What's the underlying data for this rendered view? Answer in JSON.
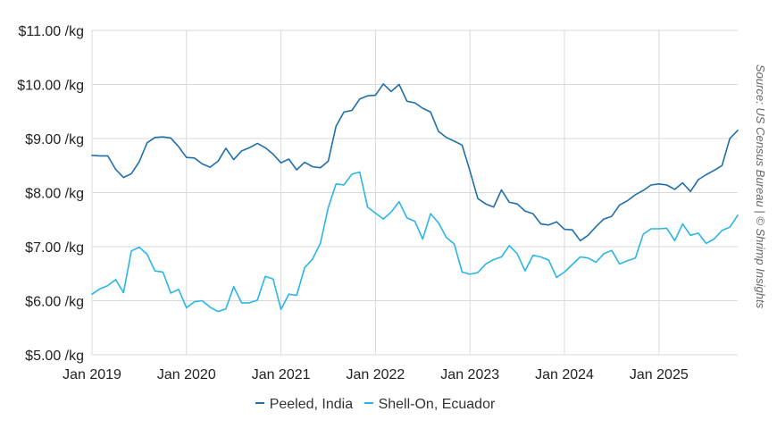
{
  "source_note": "Source: US Census Bureau | © Shrimp Insights",
  "chart_data": {
    "type": "line",
    "title": "",
    "xlabel": "",
    "ylabel": "",
    "ylim": [
      5,
      11
    ],
    "yticks": [
      {
        "value": 11,
        "label": "$11.00 /kg"
      },
      {
        "value": 10,
        "label": "$10.00 /kg"
      },
      {
        "value": 9,
        "label": "$9.00 /kg"
      },
      {
        "value": 8,
        "label": "$8.00 /kg"
      },
      {
        "value": 7,
        "label": "$7.00 /kg"
      },
      {
        "value": 6,
        "label": "$6.00 /kg"
      },
      {
        "value": 5,
        "label": "$5.00 /kg"
      }
    ],
    "xticks": [
      {
        "index": 0,
        "label": "Jan 2019"
      },
      {
        "index": 12,
        "label": "Jan 2020"
      },
      {
        "index": 24,
        "label": "Jan 2021"
      },
      {
        "index": 36,
        "label": "Jan 2022"
      },
      {
        "index": 48,
        "label": "Jan 2023"
      },
      {
        "index": 60,
        "label": "Jan 2024"
      },
      {
        "index": 72,
        "label": "Jan 2025"
      }
    ],
    "x_start": "Jan 2019",
    "x_end": "Dec 2025",
    "grid": true,
    "legend_position": "bottom",
    "series": [
      {
        "name": "Peeled, India",
        "color": "#1f6fa8",
        "values": [
          8.69,
          8.68,
          8.68,
          8.43,
          8.28,
          8.35,
          8.57,
          8.92,
          9.02,
          9.03,
          9.01,
          8.85,
          8.65,
          8.64,
          8.53,
          8.47,
          8.58,
          8.82,
          8.61,
          8.77,
          8.83,
          8.91,
          8.83,
          8.71,
          8.55,
          8.62,
          8.42,
          8.56,
          8.48,
          8.46,
          8.58,
          9.23,
          9.49,
          9.52,
          9.73,
          9.79,
          9.8,
          10.01,
          9.87,
          10.0,
          9.69,
          9.66,
          9.56,
          9.49,
          9.13,
          9.02,
          8.95,
          8.88,
          8.4,
          7.89,
          7.79,
          7.73,
          8.05,
          7.82,
          7.79,
          7.66,
          7.61,
          7.42,
          7.4,
          7.46,
          7.32,
          7.31,
          7.11,
          7.21,
          7.37,
          7.51,
          7.56,
          7.77,
          7.85,
          7.96,
          8.04,
          8.14,
          8.16,
          8.14,
          8.06,
          8.18,
          8.02,
          8.24,
          8.33,
          8.41,
          8.5,
          9.0,
          9.15
        ]
      },
      {
        "name": "Shell-On, Ecuador",
        "color": "#29b6e6",
        "values": [
          6.12,
          6.22,
          6.28,
          6.39,
          6.15,
          6.92,
          6.99,
          6.86,
          6.55,
          6.53,
          6.14,
          6.21,
          5.87,
          5.98,
          6.0,
          5.88,
          5.8,
          5.85,
          6.26,
          5.96,
          5.96,
          6.01,
          6.45,
          6.4,
          5.84,
          6.12,
          6.1,
          6.61,
          6.77,
          7.06,
          7.72,
          8.16,
          8.14,
          8.34,
          8.38,
          7.73,
          7.62,
          7.51,
          7.64,
          7.83,
          7.53,
          7.47,
          7.14,
          7.61,
          7.44,
          7.17,
          7.05,
          6.53,
          6.49,
          6.52,
          6.68,
          6.76,
          6.81,
          7.02,
          6.87,
          6.55,
          6.84,
          6.81,
          6.75,
          6.43,
          6.53,
          6.67,
          6.81,
          6.79,
          6.71,
          6.87,
          6.93,
          6.68,
          6.74,
          6.79,
          7.23,
          7.33,
          7.33,
          7.34,
          7.11,
          7.42,
          7.21,
          7.25,
          7.06,
          7.14,
          7.3,
          7.36,
          7.58
        ]
      }
    ]
  }
}
